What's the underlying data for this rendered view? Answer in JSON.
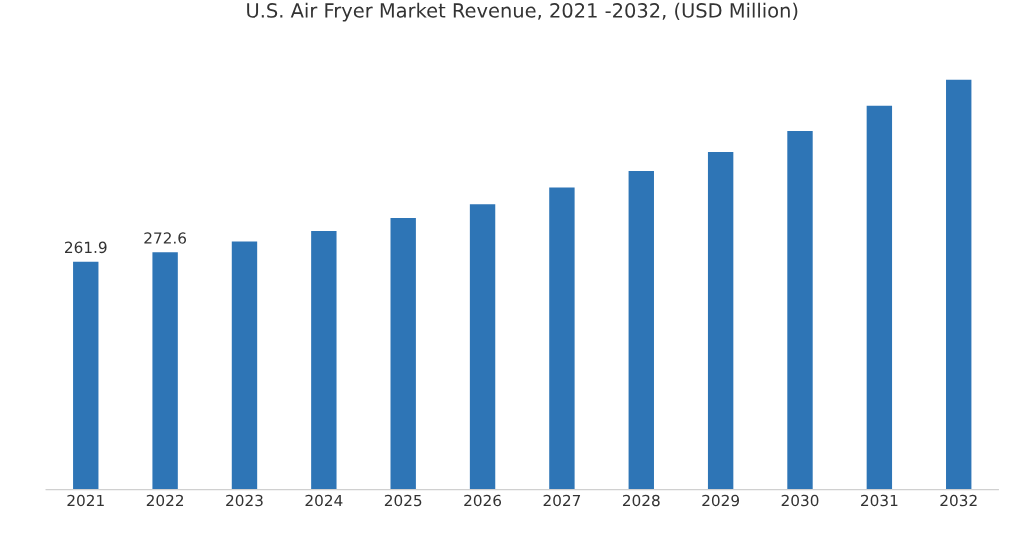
{
  "chart_data": {
    "type": "bar",
    "title": "U.S. Air Fryer Market Revenue, 2021 -2032, (USD Million)",
    "categories": [
      "2021",
      "2022",
      "2023",
      "2024",
      "2025",
      "2026",
      "2027",
      "2028",
      "2029",
      "2030",
      "2031",
      "2032"
    ],
    "values": [
      261.9,
      272.6,
      285,
      297,
      312,
      328,
      347,
      366,
      388,
      412,
      441,
      471
    ],
    "value_labels": [
      "261.9",
      "272.6",
      null,
      null,
      null,
      null,
      null,
      null,
      null,
      null,
      null,
      null
    ],
    "color": "#2e75b6",
    "tick_labels": "x",
    "grid": false,
    "legend": false
  }
}
